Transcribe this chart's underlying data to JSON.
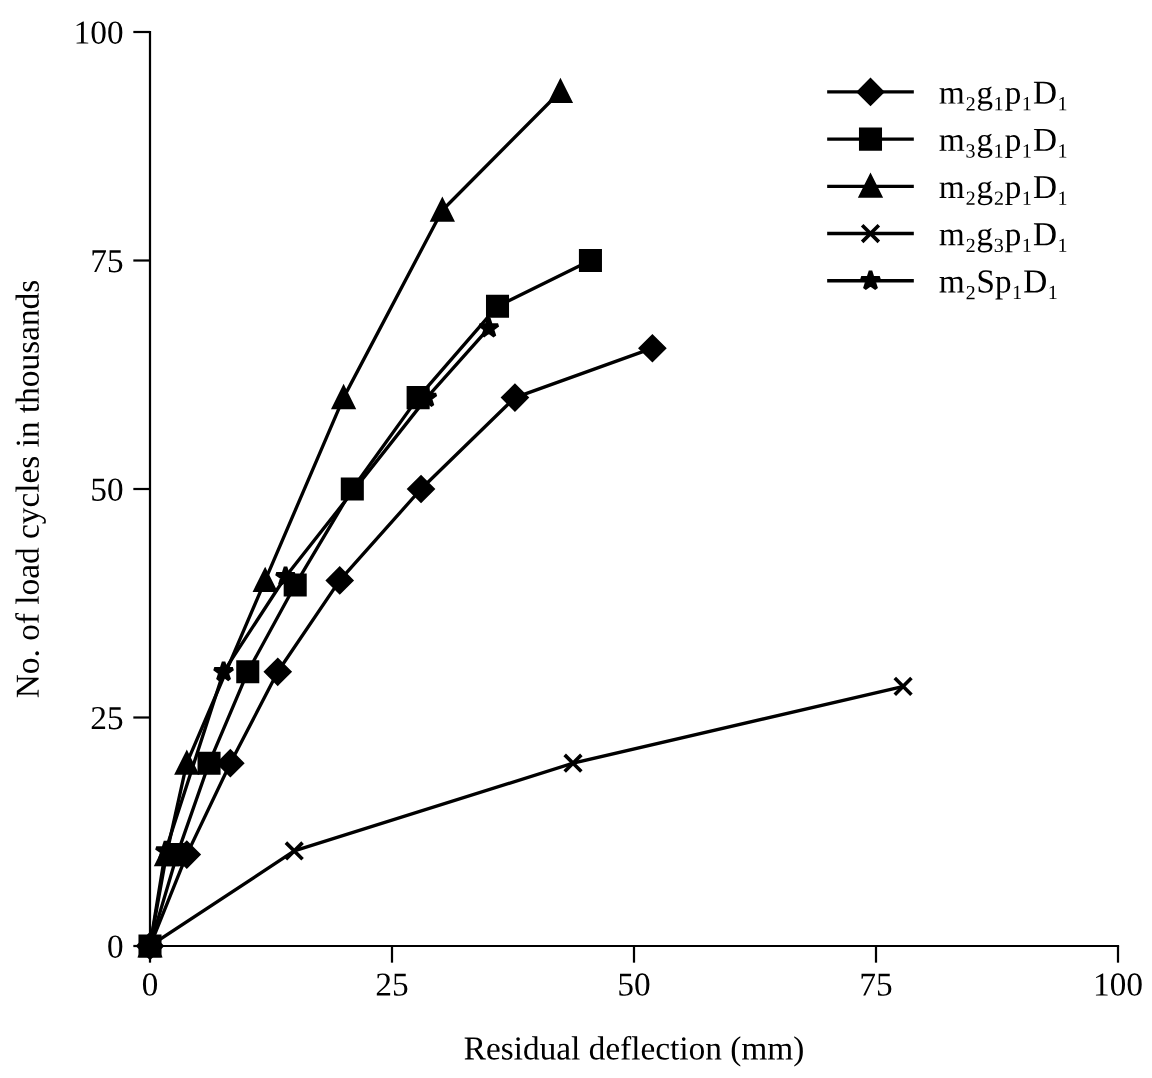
{
  "chart_data": {
    "type": "line",
    "xlabel": "Residual deflection (mm)",
    "ylabel": "No. of load cycles in thousands",
    "xlim": [
      0,
      100
    ],
    "ylim": [
      0,
      100
    ],
    "xticks": [
      0,
      25,
      50,
      75,
      100
    ],
    "yticks": [
      0,
      25,
      50,
      75,
      100
    ],
    "grid": false,
    "legend": "top right",
    "line_style": "solid",
    "series": [
      {
        "name": "m₂g₁p₁D₁",
        "color": "#000000",
        "marker": "diamond",
        "x": [
          0,
          3.8,
          8.3,
          13.2,
          19.6,
          28,
          37.7,
          51.9
        ],
        "values": [
          0,
          10,
          20,
          30,
          40,
          50,
          60,
          65.4
        ]
      },
      {
        "name": "m₃g₁p₁D₁",
        "color": "#000000",
        "marker": "square",
        "x": [
          0,
          2.8,
          6.1,
          10.1,
          15,
          20.9,
          27.7,
          35.9,
          45.5
        ],
        "values": [
          0,
          10,
          20,
          30,
          39.5,
          50,
          60,
          70,
          75
        ]
      },
      {
        "name": "m₂g₂p₁D₁",
        "color": "#000000",
        "marker": "triangle",
        "x": [
          0,
          1.7,
          3.8,
          11.9,
          20,
          30.2,
          42.4
        ],
        "values": [
          0,
          10,
          20,
          40,
          60,
          80.5,
          93.5
        ]
      },
      {
        "name": "m₂g₃p₁D₁",
        "color": "#000000",
        "marker": "cross",
        "x": [
          0,
          14.9,
          43.7,
          77.8
        ],
        "values": [
          0,
          10.4,
          20,
          28.4
        ]
      },
      {
        "name": "m₂Sp₁D₁",
        "color": "#000000",
        "marker": "star",
        "x": [
          0,
          1.6,
          7.6,
          14,
          28.6,
          35
        ],
        "values": [
          0,
          10.4,
          30,
          40.4,
          60,
          67.6
        ]
      }
    ]
  }
}
